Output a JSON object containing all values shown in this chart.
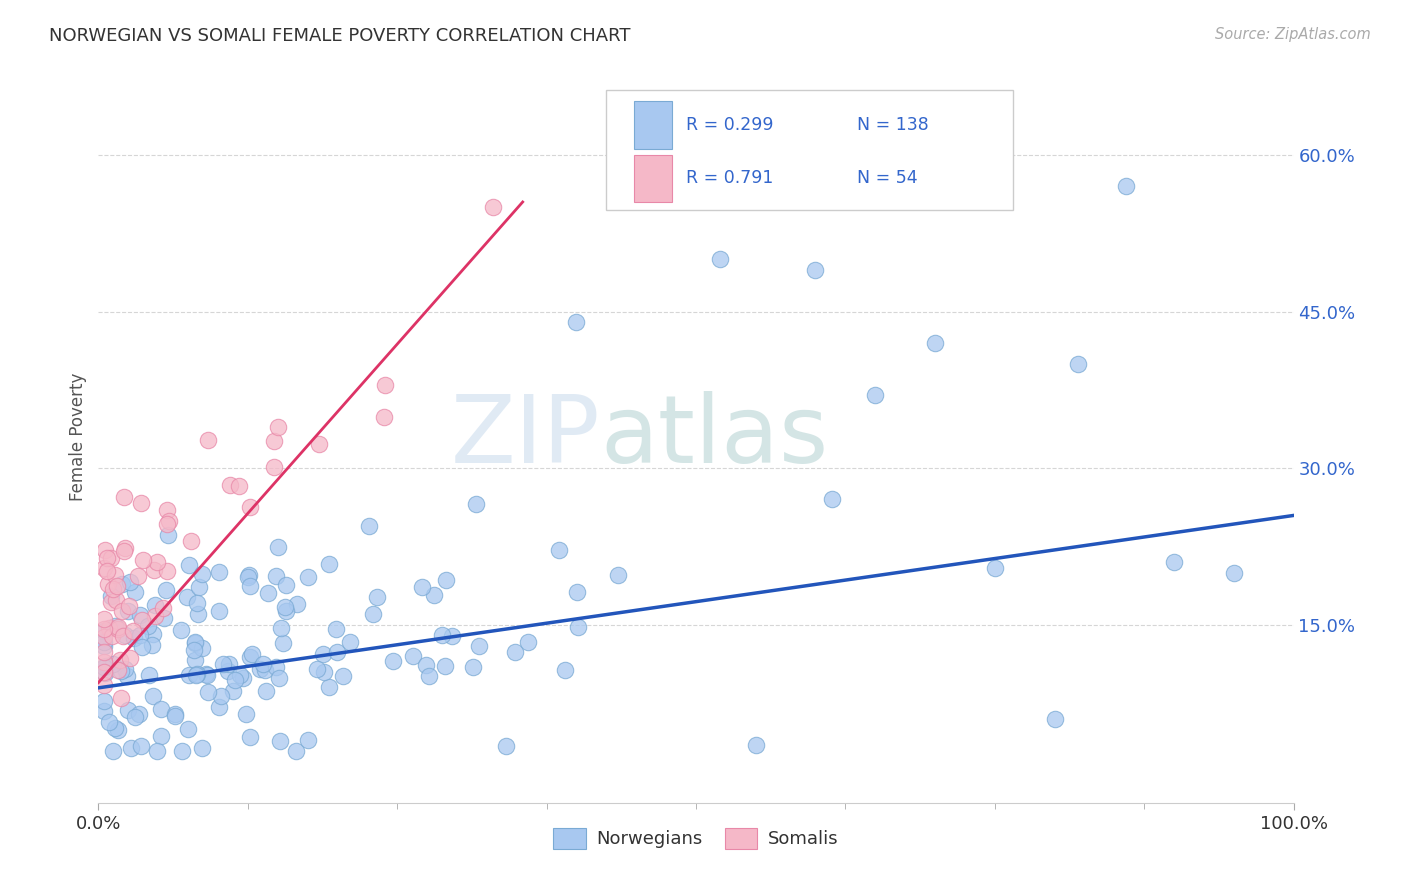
{
  "title": "NORWEGIAN VS SOMALI FEMALE POVERTY CORRELATION CHART",
  "source": "Source: ZipAtlas.com",
  "ylabel": "Female Poverty",
  "xlim": [
    0.0,
    1.0
  ],
  "ylim": [
    -0.02,
    0.68
  ],
  "yticks": [
    0.15,
    0.3,
    0.45,
    0.6
  ],
  "ytick_labels": [
    "15.0%",
    "30.0%",
    "45.0%",
    "60.0%"
  ],
  "xtick_vals": [
    0.0,
    1.0
  ],
  "xtick_labels": [
    "0.0%",
    "100.0%"
  ],
  "norwegian_R": 0.299,
  "norwegian_N": 138,
  "somali_R": 0.791,
  "somali_N": 54,
  "norwegian_color": "#a8c8f0",
  "somali_color": "#f5b8c8",
  "norwegian_edge_color": "#7aaad4",
  "somali_edge_color": "#e888a8",
  "norwegian_line_color": "#2255bb",
  "somali_line_color": "#dd3366",
  "background_color": "#ffffff",
  "grid_color": "#cccccc",
  "watermark_zip": "ZIP",
  "watermark_atlas": "atlas",
  "title_color": "#333333",
  "source_color": "#aaaaaa",
  "ytick_color": "#3366cc",
  "xtick_color": "#333333"
}
